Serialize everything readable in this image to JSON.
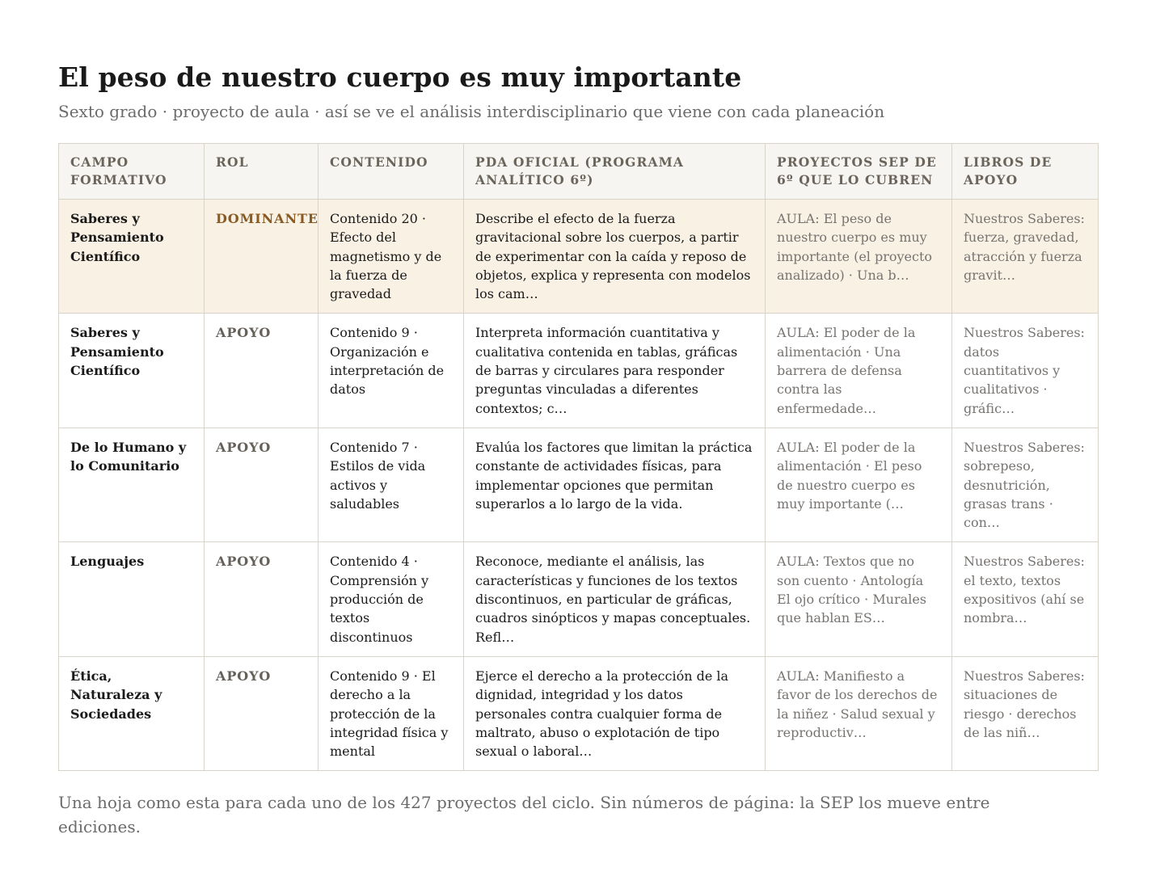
{
  "title": "El peso de nuestro cuerpo es muy importante",
  "subtitle": "Sexto grado · proyecto de aula · así se ve el análisis interdisciplinario que viene con cada planeación",
  "table": {
    "headers": [
      "CAMPO FORMATIVO",
      "ROL",
      "CONTENIDO",
      "PDA OFICIAL (PROGRAMA ANALÍTICO 6º)",
      "PROYECTOS SEP DE 6º QUE LO CUBREN",
      "LIBROS DE APOYO"
    ],
    "rows": [
      {
        "campo": "Saberes y Pensamiento Científico",
        "rol": "DOMINANTE",
        "contenido": "Contenido 20 · Efecto del magnetismo y de la fuerza de gravedad",
        "pda": "Describe el efecto de la fuerza gravitacional sobre los cuerpos, a partir de experimentar con la caída y reposo de objetos, explica y representa con modelos los cam…",
        "proyectos": "AULA: El peso de nuestro cuerpo es muy importante (el proyecto analizado) · Una b…",
        "libros": "Nuestros Saberes: fuerza, gravedad, atracción y fuerza gravit…"
      },
      {
        "campo": "Saberes y Pensamiento Científico",
        "rol": "APOYO",
        "contenido": "Contenido 9 · Organización e interpretación de datos",
        "pda": "Interpreta información cuantitativa y cualitativa contenida en tablas, gráficas de barras y circulares para responder preguntas vinculadas a diferentes contextos; c…",
        "proyectos": "AULA: El poder de la alimentación · Una barrera de defensa contra las enfermedade…",
        "libros": "Nuestros Saberes: datos cuantitativos y cualitativos · gráfic…"
      },
      {
        "campo": "De lo Humano y lo Comunitario",
        "rol": "APOYO",
        "contenido": "Contenido 7 · Estilos de vida activos y saludables",
        "pda": "Evalúa los factores que limitan la práctica constante de actividades físicas, para implementar opciones que permitan superarlos a lo largo de la vida.",
        "proyectos": "AULA: El poder de la alimentación · El peso de nuestro cuerpo es muy importante (…",
        "libros": "Nuestros Saberes: sobrepeso, desnutrición, grasas trans · con…"
      },
      {
        "campo": "Lenguajes",
        "rol": "APOYO",
        "contenido": "Contenido 4 · Comprensión y producción de textos discontinuos",
        "pda": "Reconoce, mediante el análisis, las características y funciones de los textos discontinuos, en particular de gráficas, cuadros sinópticos y mapas conceptuales. Refl…",
        "proyectos": "AULA: Textos que no son cuento · Antología El ojo crítico · Murales que hablan ES…",
        "libros": "Nuestros Saberes: el texto, textos expositivos (ahí se nombra…"
      },
      {
        "campo": "Ética, Naturaleza y Sociedades",
        "rol": "APOYO",
        "contenido": "Contenido 9 · El derecho a la protección de la integridad física y mental",
        "pda": "Ejerce el derecho a la protección de la dignidad, integridad y los datos personales contra cualquier forma de maltrato, abuso o explotación de tipo sexual o laboral…",
        "proyectos": "AULA: Manifiesto a favor de los derechos de la niñez · Salud sexual y reproductiv…",
        "libros": "Nuestros Saberes: situaciones de riesgo · derechos de las niñ…"
      }
    ]
  },
  "footer": "Una hoja como esta para cada uno de los 427 proyectos del ciclo. Sin números de página: la SEP los mueve entre ediciones."
}
